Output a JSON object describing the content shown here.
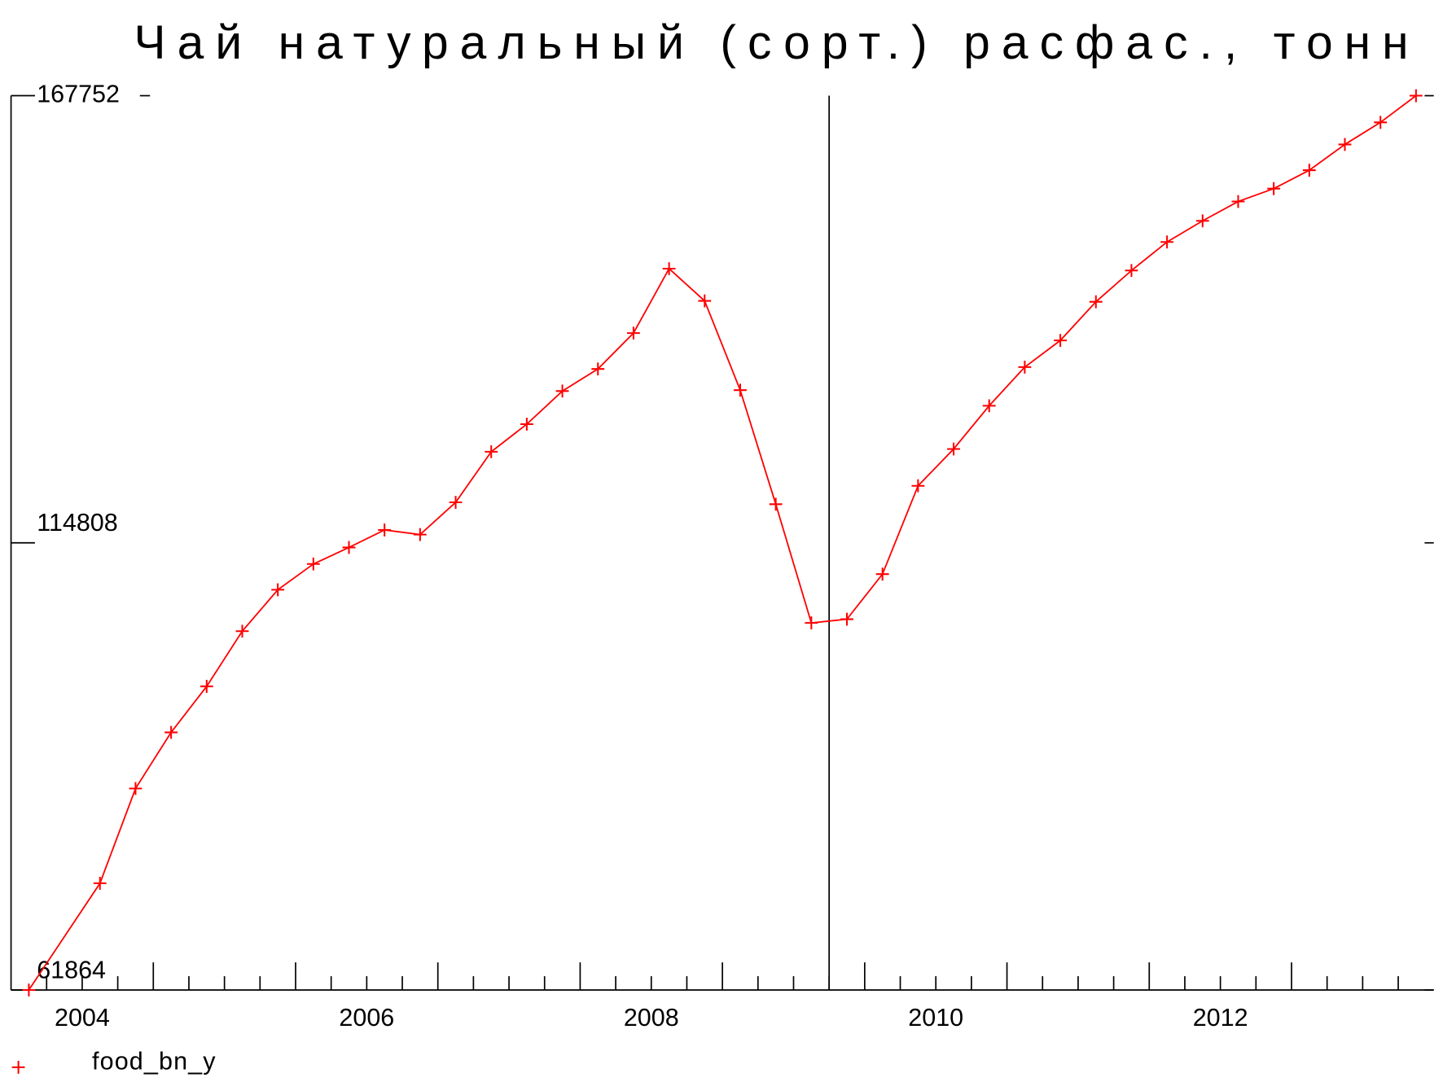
{
  "chart_data": {
    "type": "line",
    "title": "Чай натуральный (сорт.) расфас., тонн",
    "x": [
      2004.125,
      2004.625,
      2004.875,
      2005.125,
      2005.375,
      2005.625,
      2005.875,
      2006.125,
      2006.375,
      2006.625,
      2006.875,
      2007.125,
      2007.375,
      2007.625,
      2007.875,
      2008.125,
      2008.375,
      2008.625,
      2008.875,
      2009.125,
      2009.375,
      2009.625,
      2009.875,
      2010.125,
      2010.375,
      2010.625,
      2010.875,
      2011.125,
      2011.375,
      2011.625,
      2011.875,
      2012.125,
      2012.375,
      2012.625,
      2012.875,
      2013.125,
      2013.375,
      2013.625,
      2013.875
    ],
    "series": [
      {
        "name": "food_bn_y",
        "color": "#ff0000",
        "values": [
          61864,
          74499,
          85720,
          92366,
          97813,
          104349,
          109251,
          112302,
          114262,
          116332,
          115788,
          119601,
          125592,
          128860,
          132782,
          135397,
          139645,
          147271,
          143458,
          132891,
          119383,
          105329,
          105765,
          111103,
          121561,
          125919,
          131039,
          135615,
          138774,
          143349,
          147053,
          150431,
          152936,
          155224,
          156749,
          158928,
          161978,
          164593,
          167752
        ]
      }
    ],
    "xlim": [
      2004,
      2014
    ],
    "xticks": [
      2005,
      2006,
      2007,
      2008,
      2009,
      2010,
      2011,
      2012,
      2013
    ],
    "minor_xticks": [
      2004.25,
      2004.5,
      2004.75,
      2005.25,
      2005.5,
      2005.75,
      2006.25,
      2006.5,
      2006.75,
      2007.25,
      2007.5,
      2007.75,
      2008.25,
      2008.5,
      2008.75,
      2009.25,
      2009.5,
      2009.75,
      2010.25,
      2010.5,
      2010.75,
      2011.25,
      2011.5,
      2011.75,
      2012.25,
      2012.5,
      2012.75,
      2013.25,
      2013.5,
      2013.75
    ],
    "year_labels": [
      2004,
      2006,
      2008,
      2010,
      2012
    ],
    "vline": 2009.75,
    "ylim": [
      61864,
      167752
    ],
    "yticks": [
      61864,
      114808,
      167752
    ]
  }
}
